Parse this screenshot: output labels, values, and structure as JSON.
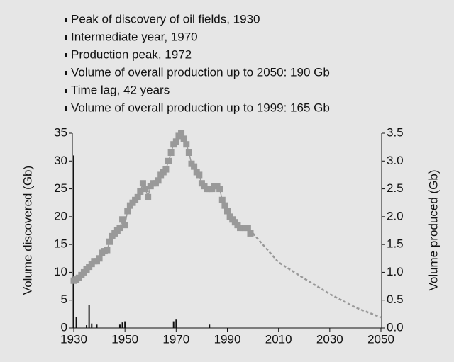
{
  "chart_data": {
    "type": "bar_line",
    "annotations": [
      "Peak of discovery of oil fields, 1930",
      "Intermediate year, 1970",
      "Production peak, 1972",
      "Volume of overall production up to 2050: 190 Gb",
      "Time lag, 42 years",
      "Volume of overall production up to 1999: 165 Gb"
    ],
    "y_label": "Volume discovered (Gb)",
    "y2_label": "Volume produced (Gb)",
    "xlim": [
      1930,
      2050
    ],
    "xticks": [
      1930,
      1950,
      1970,
      1990,
      2010,
      2030,
      2050
    ],
    "ylim": [
      0,
      35
    ],
    "yticks": [
      0,
      5,
      10,
      15,
      20,
      25,
      30,
      35
    ],
    "y2lim": [
      0,
      3.5
    ],
    "y2ticks": [
      {
        "value": 0,
        "label": "0.0"
      },
      {
        "value": 0.5,
        "label": "0.5"
      },
      {
        "value": 1,
        "label": "1.0"
      },
      {
        "value": 1.5,
        "label": "1.5"
      },
      {
        "value": 2,
        "label": "2.0"
      },
      {
        "value": 2.5,
        "label": "2.5"
      },
      {
        "value": 3,
        "label": "3.0"
      },
      {
        "value": 3.5,
        "label": "3.5"
      }
    ],
    "series": [
      {
        "type": "bar",
        "color": "#111111",
        "x": [
          1930,
          1931,
          1935,
          1936,
          1937,
          1939,
          1948,
          1949,
          1950,
          1969,
          1970,
          1983
        ],
        "values": [
          31,
          2,
          0.5,
          4.1,
          0.8,
          0.6,
          0.6,
          1,
          1.2,
          1.2,
          1.5,
          0.6
        ]
      },
      {
        "type": "line",
        "axis": "y2",
        "color": "#999999",
        "marker": "square",
        "x": [
          1930,
          1931,
          1932,
          1933,
          1934,
          1935,
          1936,
          1937,
          1938,
          1939,
          1940,
          1941,
          1942,
          1943,
          1944,
          1945,
          1946,
          1947,
          1948,
          1949,
          1950,
          1951,
          1952,
          1953,
          1954,
          1955,
          1956,
          1957,
          1958,
          1959,
          1960,
          1961,
          1962,
          1963,
          1964,
          1965,
          1966,
          1967,
          1968,
          1969,
          1970,
          1971,
          1972,
          1973,
          1974,
          1975,
          1976,
          1977,
          1978,
          1979,
          1980,
          1981,
          1982,
          1983,
          1984,
          1985,
          1986,
          1987,
          1988,
          1989,
          1990,
          1991,
          1992,
          1993,
          1994,
          1995,
          1996,
          1997,
          1998,
          1999
        ],
        "values": [
          0.85,
          0.87,
          0.9,
          0.95,
          1.0,
          1.05,
          1.1,
          1.15,
          1.2,
          1.2,
          1.25,
          1.35,
          1.38,
          1.4,
          1.55,
          1.65,
          1.7,
          1.75,
          1.8,
          1.95,
          1.85,
          2.1,
          2.2,
          2.25,
          2.3,
          2.35,
          2.45,
          2.6,
          2.5,
          2.35,
          2.55,
          2.6,
          2.6,
          2.65,
          2.75,
          2.8,
          2.85,
          3.0,
          3.15,
          3.3,
          3.35,
          3.45,
          3.5,
          3.4,
          3.3,
          3.15,
          2.95,
          2.9,
          2.8,
          2.75,
          2.6,
          2.55,
          2.5,
          2.5,
          2.5,
          2.55,
          2.55,
          2.5,
          2.3,
          2.2,
          2.1,
          2.0,
          1.95,
          1.9,
          1.85,
          1.8,
          1.8,
          1.8,
          1.8,
          1.7
        ]
      },
      {
        "type": "line",
        "axis": "y2",
        "color": "#999999",
        "dash": true,
        "x": [
          2000,
          2010,
          2020,
          2030,
          2040,
          2050
        ],
        "values": [
          1.7,
          1.18,
          0.89,
          0.61,
          0.37,
          0.19
        ]
      }
    ]
  }
}
